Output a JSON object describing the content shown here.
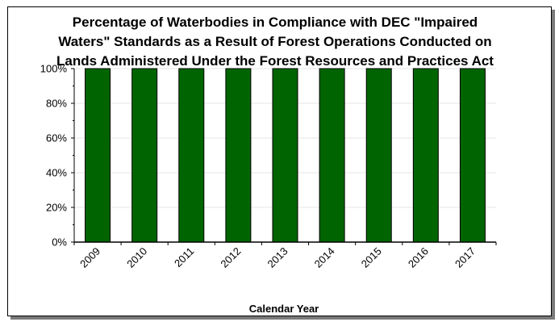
{
  "chart_data": {
    "type": "bar",
    "title_lines": [
      "Percentage of Waterbodies in Compliance with DEC \"Impaired",
      "Waters\" Standards as a Result of Forest Operations Conducted on",
      "Lands Administered Under the Forest Resources and Practices Act"
    ],
    "xlabel": "Calendar Year",
    "ylabel": "",
    "categories": [
      "2009",
      "2010",
      "2011",
      "2012",
      "2013",
      "2014",
      "2015",
      "2016",
      "2017"
    ],
    "values": [
      100,
      100,
      100,
      100,
      100,
      100,
      100,
      100,
      100
    ],
    "ylim": [
      0,
      100
    ],
    "yticks": [
      {
        "value": 0,
        "label": "0%"
      },
      {
        "value": 20,
        "label": "20%"
      },
      {
        "value": 40,
        "label": "40%"
      },
      {
        "value": 60,
        "label": "60%"
      },
      {
        "value": 80,
        "label": "80%"
      },
      {
        "value": 100,
        "label": "100%"
      }
    ],
    "grid": true,
    "legend": "none",
    "colors": {
      "bar_fill": "#006400",
      "bar_stroke": "#000000",
      "grid": "#e6e6e6",
      "axis": "#000000"
    }
  }
}
